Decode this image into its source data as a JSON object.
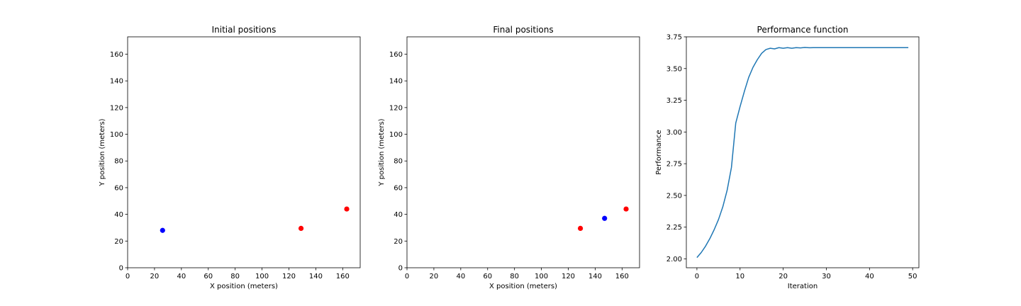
{
  "chart_data": [
    {
      "type": "scatter",
      "title": "Initial positions",
      "xlabel": "X position (meters)",
      "ylabel": "Y position (meters)",
      "xlim": [
        0,
        173
      ],
      "ylim": [
        0,
        173
      ],
      "xticks": [
        0,
        20,
        40,
        60,
        80,
        100,
        120,
        140,
        160
      ],
      "yticks": [
        0,
        20,
        40,
        60,
        80,
        100,
        120,
        140,
        160
      ],
      "grid": false,
      "points": [
        {
          "x": 26,
          "y": 28,
          "color": "#0000ff"
        },
        {
          "x": 129,
          "y": 29.5,
          "color": "#ff0000"
        },
        {
          "x": 163,
          "y": 44,
          "color": "#ff0000"
        }
      ]
    },
    {
      "type": "scatter",
      "title": "Final positions",
      "xlabel": "X position (meters)",
      "ylabel": "Y position (meters)",
      "xlim": [
        0,
        173
      ],
      "ylim": [
        0,
        173
      ],
      "xticks": [
        0,
        20,
        40,
        60,
        80,
        100,
        120,
        140,
        160
      ],
      "yticks": [
        0,
        20,
        40,
        60,
        80,
        100,
        120,
        140,
        160
      ],
      "grid": false,
      "points": [
        {
          "x": 129,
          "y": 29.5,
          "color": "#ff0000"
        },
        {
          "x": 147,
          "y": 37,
          "color": "#0000ff"
        },
        {
          "x": 163,
          "y": 44,
          "color": "#ff0000"
        }
      ]
    },
    {
      "type": "line",
      "title": "Performance function",
      "xlabel": "Iteration",
      "ylabel": "Performance",
      "xlim": [
        -2.45,
        51.45
      ],
      "ylim": [
        1.93,
        3.75
      ],
      "xticks": [
        0,
        10,
        20,
        30,
        40,
        50
      ],
      "yticks": [
        "2.00",
        "2.25",
        "2.50",
        "2.75",
        "3.00",
        "3.25",
        "3.50",
        "3.75"
      ],
      "grid": false,
      "color": "#1f77b4",
      "x": [
        0,
        1,
        2,
        3,
        4,
        5,
        6,
        7,
        8,
        9,
        10,
        11,
        12,
        13,
        14,
        15,
        16,
        17,
        18,
        19,
        20,
        21,
        22,
        23,
        24,
        25,
        26,
        27,
        28,
        29,
        30,
        31,
        32,
        33,
        34,
        35,
        36,
        37,
        38,
        39,
        40,
        41,
        42,
        43,
        44,
        45,
        46,
        47,
        48,
        49
      ],
      "y": [
        2.01,
        2.05,
        2.1,
        2.16,
        2.23,
        2.31,
        2.41,
        2.54,
        2.72,
        3.07,
        3.2,
        3.32,
        3.43,
        3.51,
        3.57,
        3.62,
        3.65,
        3.66,
        3.655,
        3.665,
        3.66,
        3.665,
        3.66,
        3.665,
        3.663,
        3.666,
        3.664,
        3.665,
        3.665,
        3.665,
        3.665,
        3.665,
        3.665,
        3.665,
        3.665,
        3.665,
        3.665,
        3.665,
        3.665,
        3.665,
        3.665,
        3.665,
        3.665,
        3.665,
        3.665,
        3.665,
        3.665,
        3.665,
        3.665,
        3.665
      ]
    }
  ]
}
